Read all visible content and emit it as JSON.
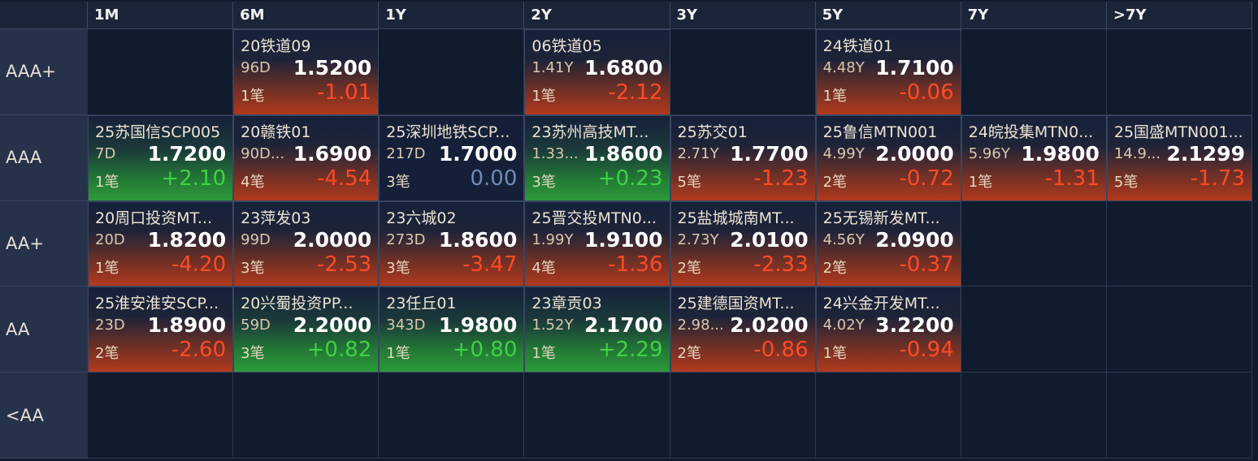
{
  "columns": [
    "1M",
    "6M",
    "1Y",
    "2Y",
    "3Y",
    "5Y",
    "7Y",
    ">7Y"
  ],
  "rows": [
    {
      "label": "AAA+",
      "cells": [
        null,
        {
          "name": "20铁道09",
          "tenor": "96D",
          "yield": "1.5200",
          "count": "1笔",
          "change": "-1.01"
        },
        null,
        {
          "name": "06铁道05",
          "tenor": "1.41Y",
          "yield": "1.6800",
          "count": "1笔",
          "change": "-2.12"
        },
        null,
        {
          "name": "24铁道01",
          "tenor": "4.48Y",
          "yield": "1.7100",
          "count": "1笔",
          "change": "-0.06"
        },
        null,
        null
      ]
    },
    {
      "label": "AAA",
      "cells": [
        {
          "name": "25苏国信SCP005",
          "tenor": "7D",
          "yield": "1.7200",
          "count": "1笔",
          "change": "+2.10"
        },
        {
          "name": "20赣铁01",
          "tenor": "90D...",
          "yield": "1.6900",
          "count": "4笔",
          "change": "-4.54"
        },
        {
          "name": "25深圳地铁SCP...",
          "tenor": "217D",
          "yield": "1.7000",
          "count": "3笔",
          "change": "0.00"
        },
        {
          "name": "23苏州高技MT...",
          "tenor": "1.33...",
          "yield": "1.8600",
          "count": "3笔",
          "change": "+0.23"
        },
        {
          "name": "25苏交01",
          "tenor": "2.71Y",
          "yield": "1.7700",
          "count": "5笔",
          "change": "-1.23"
        },
        {
          "name": "25鲁信MTN001",
          "tenor": "4.99Y",
          "yield": "2.0000",
          "count": "2笔",
          "change": "-0.72"
        },
        {
          "name": "24皖投集MTN0...",
          "tenor": "5.96Y",
          "yield": "1.9800",
          "count": "1笔",
          "change": "-1.31"
        },
        {
          "name": "25国盛MTN001...",
          "tenor": "14.9...",
          "yield": "2.1299",
          "count": "5笔",
          "change": "-1.73"
        }
      ]
    },
    {
      "label": "AA+",
      "cells": [
        {
          "name": "20周口投资MT...",
          "tenor": "20D",
          "yield": "1.8200",
          "count": "1笔",
          "change": "-4.20"
        },
        {
          "name": "23萍发03",
          "tenor": "99D",
          "yield": "2.0000",
          "count": "3笔",
          "change": "-2.53"
        },
        {
          "name": "23六城02",
          "tenor": "273D",
          "yield": "1.8600",
          "count": "3笔",
          "change": "-3.47"
        },
        {
          "name": "25晋交投MTN0...",
          "tenor": "1.99Y",
          "yield": "1.9100",
          "count": "4笔",
          "change": "-1.36"
        },
        {
          "name": "25盐城城南MT...",
          "tenor": "2.73Y",
          "yield": "2.0100",
          "count": "2笔",
          "change": "-2.33"
        },
        {
          "name": "25无锡新发MT...",
          "tenor": "4.56Y",
          "yield": "2.0900",
          "count": "2笔",
          "change": "-0.37"
        },
        null,
        null
      ]
    },
    {
      "label": "AA",
      "cells": [
        {
          "name": "25淮安淮安SCP...",
          "tenor": "23D",
          "yield": "1.8900",
          "count": "2笔",
          "change": "-2.60"
        },
        {
          "name": "20兴蜀投资PP...",
          "tenor": "59D",
          "yield": "2.2000",
          "count": "3笔",
          "change": "+0.82"
        },
        {
          "name": "23任丘01",
          "tenor": "343D",
          "yield": "1.9800",
          "count": "1笔",
          "change": "+0.80"
        },
        {
          "name": "23章贡03",
          "tenor": "1.52Y",
          "yield": "2.1700",
          "count": "1笔",
          "change": "+2.29"
        },
        {
          "name": "25建德国资MT...",
          "tenor": "2.98...",
          "yield": "2.0200",
          "count": "2笔",
          "change": "-0.86"
        },
        {
          "name": "24兴金开发MT...",
          "tenor": "4.02Y",
          "yield": "3.2200",
          "count": "1笔",
          "change": "-0.94"
        },
        null,
        null
      ]
    },
    {
      "label": "<AA",
      "cells": [
        null,
        null,
        null,
        null,
        null,
        null,
        null,
        null
      ]
    }
  ]
}
